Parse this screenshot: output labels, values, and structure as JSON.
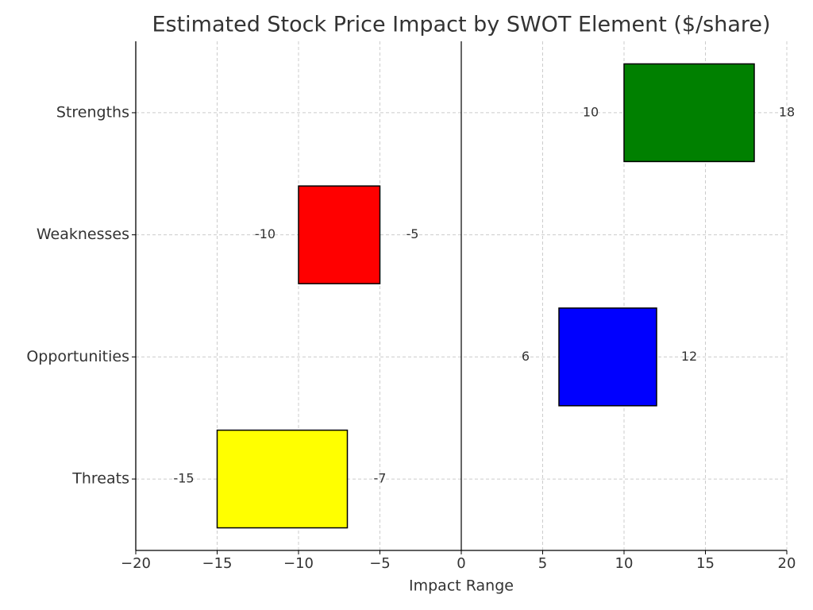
{
  "chart_data": {
    "type": "range_bar",
    "title": "Estimated Stock Price Impact by SWOT Element ($/share)",
    "xlabel": "Impact Range",
    "categories": [
      "Strengths",
      "Weaknesses",
      "Opportunities",
      "Threats"
    ],
    "low": [
      10,
      -10,
      6,
      -15
    ],
    "high": [
      18,
      -5,
      12,
      -7
    ],
    "colors": [
      "#008000",
      "#ff0000",
      "#0000ff",
      "#ffff00"
    ],
    "xlim": [
      -20,
      20
    ],
    "xticks": [
      {
        "value": -20,
        "label": "−20"
      },
      {
        "value": -15,
        "label": "−15"
      },
      {
        "value": -10,
        "label": "−10"
      },
      {
        "value": -5,
        "label": "−5"
      },
      0,
      5,
      10,
      15,
      20
    ],
    "grid": true,
    "zero_line": true
  }
}
